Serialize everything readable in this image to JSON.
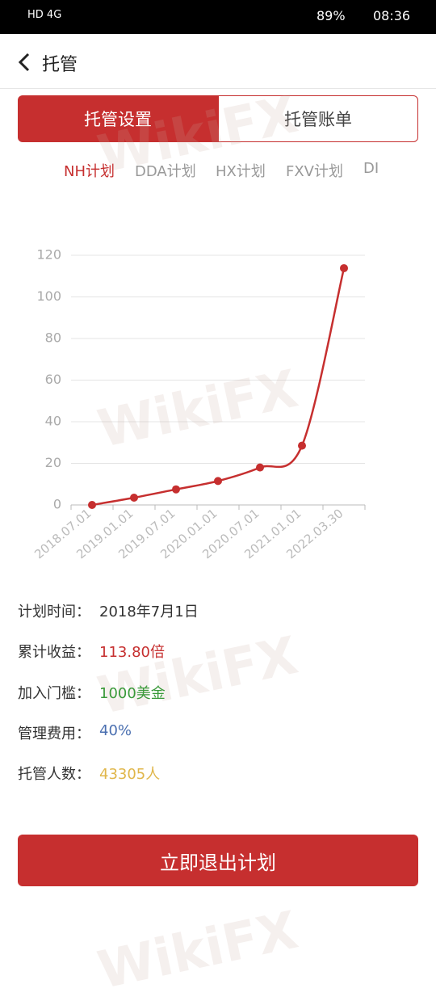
{
  "status_bar": {
    "network": "HD 4G",
    "battery": "89%",
    "time": "08:36"
  },
  "header": {
    "title": "托管"
  },
  "tabs": [
    "托管设置",
    "托管账单"
  ],
  "plans": [
    "NH计划",
    "DDA计划",
    "HX计划",
    "FXV计划",
    "DI"
  ],
  "chart_data": {
    "type": "line",
    "categories": [
      "2018.07.01",
      "2019.01.01",
      "2019.07.01",
      "2020.01.01",
      "2020.07.01",
      "2021.01.01",
      "2022.03.30"
    ],
    "values": [
      0,
      3.5,
      7.5,
      11.5,
      18,
      28.5,
      113.8
    ],
    "color": "#c62f2f",
    "ylim": [
      0,
      120
    ],
    "yticks": [
      0,
      20,
      40,
      60,
      80,
      100,
      120
    ],
    "grid": true
  },
  "info_rows": [
    {
      "label": "计划时间：",
      "value": "2018年7月1日",
      "color": "#333333"
    },
    {
      "label": "累计收益：",
      "value": "113.80倍",
      "color": "#c62f2f"
    },
    {
      "label": "加入门槛：",
      "value": "1000美金",
      "color": "#3a9a3a"
    },
    {
      "label": "管理费用：",
      "value": "40%",
      "color": "#4a6fb0"
    },
    {
      "label": "托管人数：",
      "value": "43305人",
      "color": "#e0b64a"
    }
  ],
  "button": "立即退出计划",
  "watermark": "WikiFX"
}
